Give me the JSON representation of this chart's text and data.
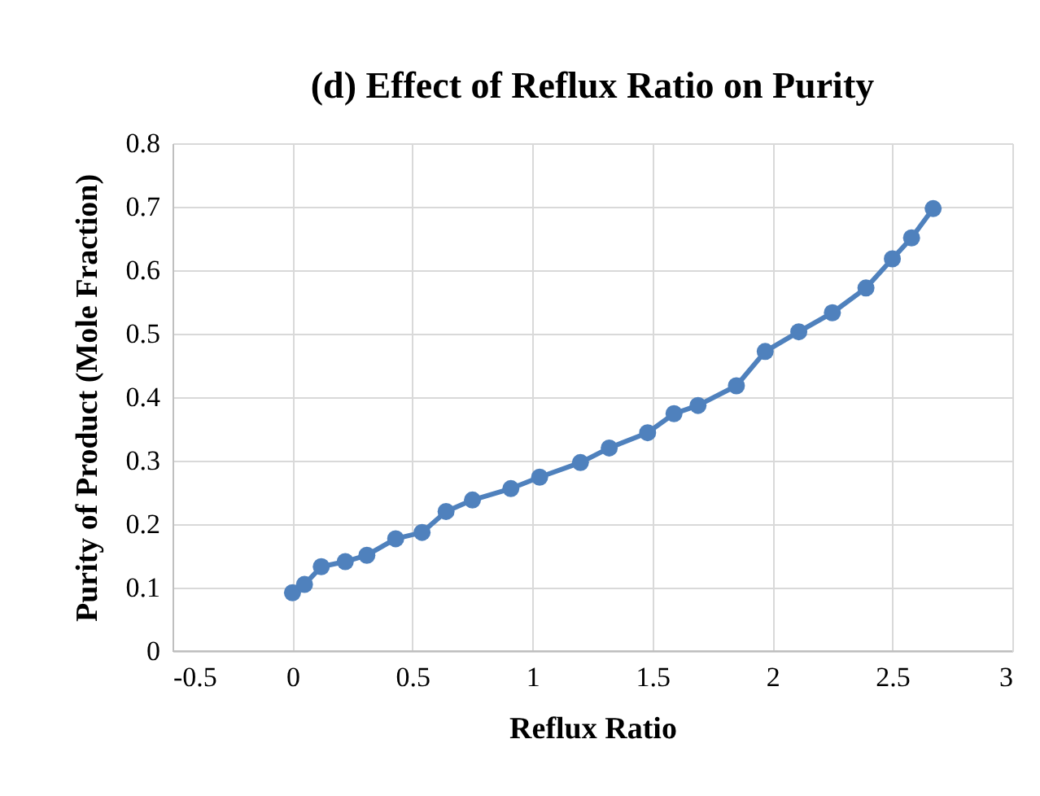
{
  "chart_data": {
    "type": "line",
    "title": "(d) Effect of Reflux Ratio on Purity",
    "xlabel": "Reflux Ratio",
    "ylabel": "Purity of Product (Mole Fraction)",
    "x": [
      0,
      0.05,
      0.12,
      0.22,
      0.31,
      0.43,
      0.54,
      0.64,
      0.75,
      0.91,
      1.03,
      1.2,
      1.32,
      1.48,
      1.59,
      1.69,
      1.85,
      1.97,
      2.11,
      2.25,
      2.39,
      2.5,
      2.58,
      2.67
    ],
    "series": [
      {
        "color": "#4f81bd",
        "values": [
          0.092,
          0.105,
          0.133,
          0.141,
          0.151,
          0.177,
          0.187,
          0.22,
          0.238,
          0.256,
          0.274,
          0.297,
          0.32,
          0.344,
          0.374,
          0.387,
          0.418,
          0.472,
          0.503,
          0.533,
          0.572,
          0.618,
          0.651,
          0.697
        ]
      }
    ],
    "xlim": [
      -0.5,
      3
    ],
    "xticks": [
      -0.5,
      0,
      0.5,
      1,
      1.5,
      2,
      2.5,
      3
    ],
    "ylim": [
      0,
      0.8
    ],
    "yticks": [
      0,
      0.1,
      0.2,
      0.3,
      0.4,
      0.5,
      0.6,
      0.7,
      0.8
    ],
    "grid": true,
    "marker": "circle",
    "line_style": "solid"
  }
}
